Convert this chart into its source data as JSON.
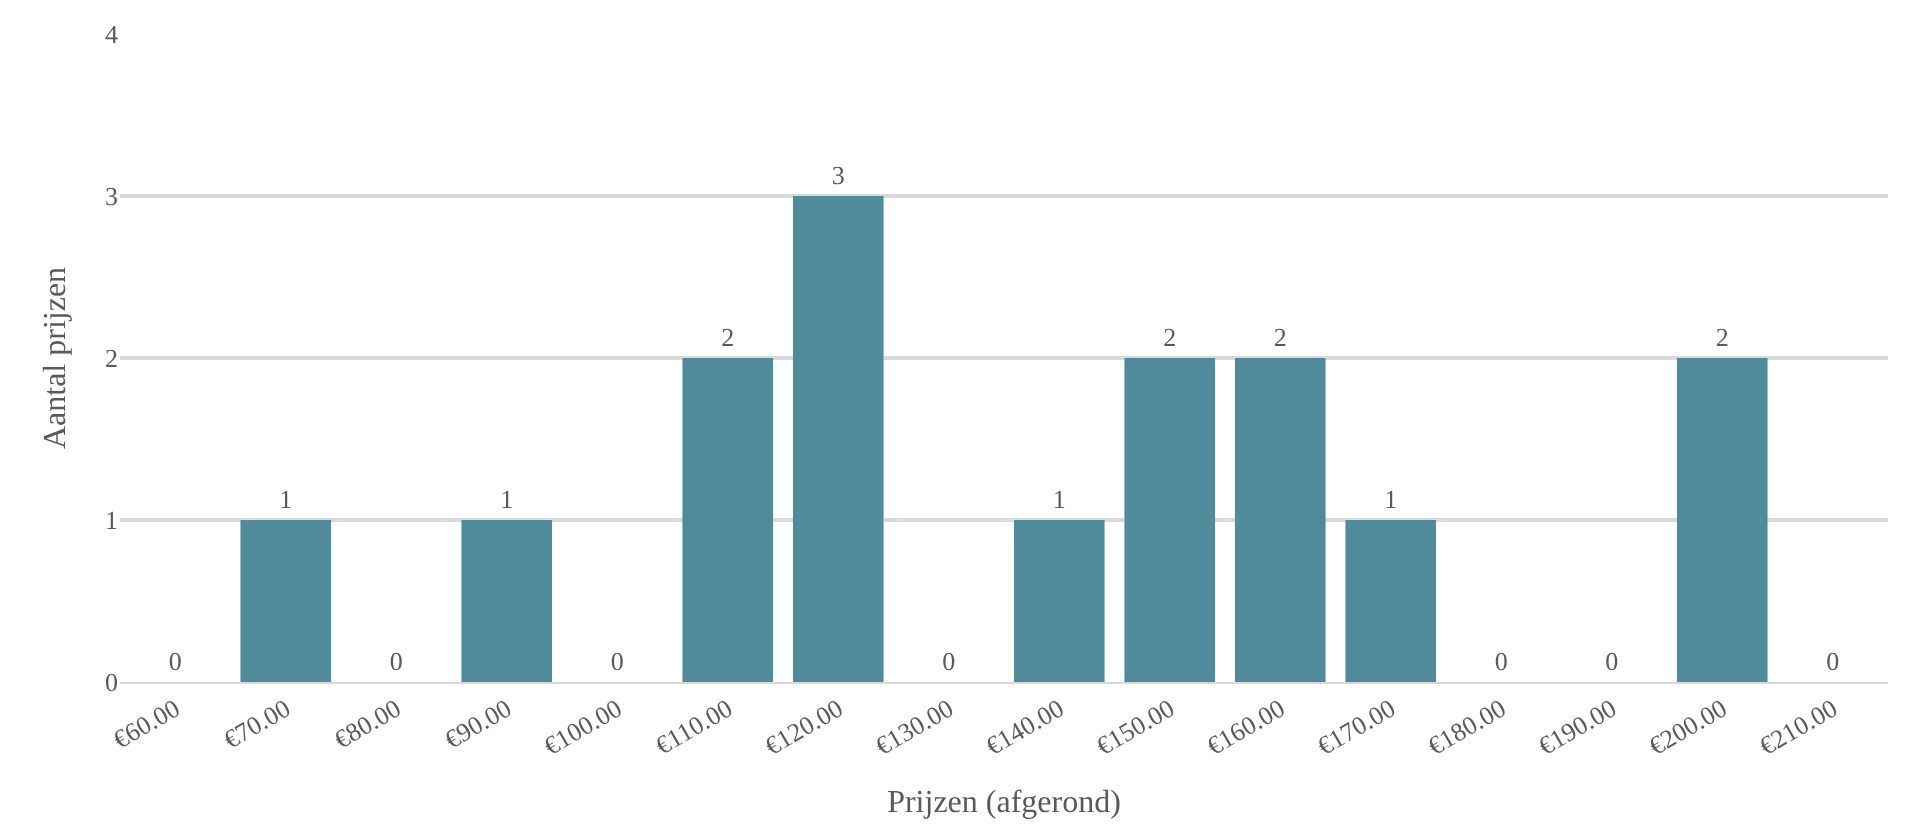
{
  "chart_data": {
    "type": "bar",
    "xlabel": "Prijzen (afgerond)",
    "ylabel": "Aantal prijzen",
    "categories": [
      "€60.00",
      "€70.00",
      "€80.00",
      "€90.00",
      "€100.00",
      "€110.00",
      "€120.00",
      "€130.00",
      "€140.00",
      "€150.00",
      "€160.00",
      "€170.00",
      "€180.00",
      "€190.00",
      "€200.00",
      "€210.00"
    ],
    "values": [
      0,
      1,
      0,
      1,
      0,
      2,
      3,
      0,
      1,
      2,
      2,
      1,
      0,
      0,
      2,
      0
    ],
    "color": "#508b9b",
    "ylim": [
      0,
      4
    ],
    "yticks": [
      0,
      1,
      2,
      3,
      4
    ],
    "grid": "y",
    "data_labels": true,
    "legend": false
  }
}
